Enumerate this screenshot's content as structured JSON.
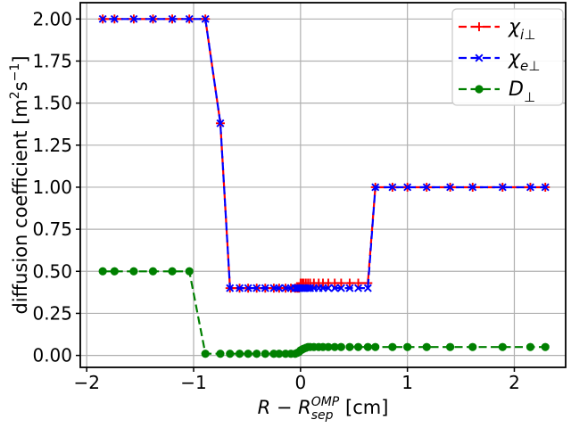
{
  "figure": {
    "background": "#ffffff"
  },
  "colors": {
    "chi_i": "#ff0000",
    "chi_e": "#0000ff",
    "d_perp": "#008000",
    "grid": "#b0b0b0",
    "spine": "#000000",
    "legend_edge": "#cccccc",
    "legend_face": "#ffffff"
  },
  "chart_data": {
    "type": "line",
    "title": "",
    "xlabel": "R − R_sep^OMP [cm]",
    "ylabel": "diffusion coefficient [m²s⁻¹]",
    "xlabel_parts": [
      {
        "t": "R",
        "i": true
      },
      {
        "t": " − ",
        "i": false
      },
      {
        "t": "R",
        "i": true
      },
      {
        "t": "OMP",
        "i": true,
        "sup": true
      },
      {
        "t": "sep",
        "i": true,
        "sub": true,
        "stack": true
      },
      {
        "t": " [cm]",
        "i": false,
        "afterstack": true
      }
    ],
    "ylabel_parts": [
      {
        "t": "diffusion coefficient [m"
      },
      {
        "t": "2",
        "sup": true
      },
      {
        "t": "s"
      },
      {
        "t": "−1",
        "sup": true
      },
      {
        "t": "]"
      }
    ],
    "xlim": [
      -2.06,
      2.48
    ],
    "ylim": [
      -0.071,
      2.097
    ],
    "xticks": [
      -2,
      -1,
      0,
      1,
      2
    ],
    "xtick_labels": [
      "−2",
      "−1",
      "0",
      "1",
      "2"
    ],
    "yticks": [
      0.0,
      0.25,
      0.5,
      0.75,
      1.0,
      1.25,
      1.5,
      1.75,
      2.0
    ],
    "ytick_labels": [
      "0.00",
      "0.25",
      "0.50",
      "0.75",
      "1.00",
      "1.25",
      "1.50",
      "1.75",
      "2.00"
    ],
    "grid": true,
    "legend_position": "upper right",
    "x_shared": [
      -1.85,
      -1.74,
      -1.56,
      -1.38,
      -1.2,
      -1.04,
      -0.89,
      -0.75,
      -0.66,
      -0.57,
      -0.49,
      -0.41,
      -0.33,
      -0.25,
      -0.2,
      -0.14,
      -0.09,
      -0.05,
      -0.03,
      -0.015,
      0,
      0.015,
      0.03,
      0.05,
      0.07,
      0.09,
      0.125,
      0.17,
      0.21,
      0.26,
      0.32,
      0.38,
      0.46,
      0.54,
      0.63,
      0.7,
      0.86,
      1,
      1.18,
      1.4,
      1.61,
      1.89,
      2.15,
      2.29
    ],
    "series": [
      {
        "name": "chi_i_perp",
        "label": "χ_i⊥",
        "label_main": "χ",
        "label_sub": "i⊥",
        "color": "#ff0000",
        "linestyle": "dashed",
        "marker": "plus",
        "y": [
          2,
          2,
          2,
          2,
          2,
          2,
          2,
          1.38,
          0.4,
          0.4,
          0.4,
          0.4,
          0.4,
          0.4,
          0.4,
          0.4,
          0.4,
          0.4,
          0.4,
          0.4,
          0.43,
          0.43,
          0.43,
          0.43,
          0.43,
          0.43,
          0.43,
          0.43,
          0.43,
          0.43,
          0.43,
          0.43,
          0.43,
          0.43,
          0.43,
          1,
          1,
          1,
          1,
          1,
          1,
          1,
          1,
          1
        ]
      },
      {
        "name": "chi_e_perp",
        "label": "χ_e⊥",
        "label_main": "χ",
        "label_sub": "e⊥",
        "color": "#0000ff",
        "linestyle": "dashed",
        "marker": "x",
        "y": [
          2,
          2,
          2,
          2,
          2,
          2,
          2,
          1.38,
          0.4,
          0.4,
          0.4,
          0.4,
          0.4,
          0.4,
          0.4,
          0.4,
          0.4,
          0.4,
          0.4,
          0.4,
          0.4,
          0.4,
          0.4,
          0.4,
          0.4,
          0.4,
          0.4,
          0.4,
          0.4,
          0.4,
          0.4,
          0.4,
          0.4,
          0.4,
          0.4,
          1,
          1,
          1,
          1,
          1,
          1,
          1,
          1,
          1
        ]
      },
      {
        "name": "D_perp",
        "label": "D_⊥",
        "label_main": "D",
        "label_sub": "⊥",
        "color": "#008000",
        "linestyle": "dashed",
        "marker": "circle",
        "y": [
          0.5,
          0.5,
          0.5,
          0.5,
          0.5,
          0.5,
          0.01,
          0.01,
          0.01,
          0.01,
          0.01,
          0.01,
          0.01,
          0.01,
          0.01,
          0.01,
          0.01,
          0.01,
          0.015,
          0.02,
          0.03,
          0.035,
          0.04,
          0.045,
          0.05,
          0.05,
          0.05,
          0.05,
          0.05,
          0.05,
          0.05,
          0.05,
          0.05,
          0.05,
          0.05,
          0.05,
          0.05,
          0.05,
          0.05,
          0.05,
          0.05,
          0.05,
          0.05,
          0.05
        ]
      }
    ]
  }
}
